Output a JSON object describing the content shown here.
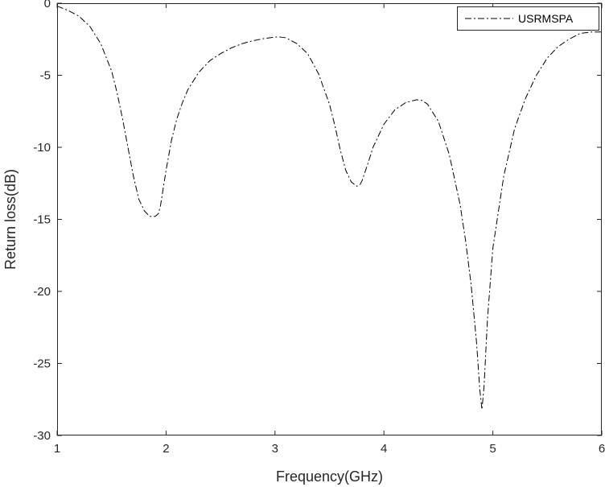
{
  "chart_data": {
    "type": "line",
    "title": "",
    "xlabel": "Frequency(GHz)",
    "ylabel": "Return loss(dB)",
    "xlim": [
      1,
      6
    ],
    "ylim": [
      -30,
      0
    ],
    "xticks": [
      1,
      2,
      3,
      4,
      5,
      6
    ],
    "yticks": [
      0,
      -5,
      -10,
      -15,
      -20,
      -25,
      -30
    ],
    "grid": false,
    "legend_position": "top-right",
    "series": [
      {
        "name": "USRMSPA",
        "line_style": "dash-dot",
        "color": "#000000",
        "x": [
          1.0,
          1.1,
          1.2,
          1.3,
          1.4,
          1.5,
          1.55,
          1.6,
          1.65,
          1.7,
          1.75,
          1.8,
          1.85,
          1.9,
          1.93,
          1.95,
          2.0,
          2.05,
          2.1,
          2.15,
          2.2,
          2.3,
          2.4,
          2.5,
          2.6,
          2.7,
          2.8,
          2.9,
          3.0,
          3.05,
          3.1,
          3.2,
          3.3,
          3.4,
          3.5,
          3.55,
          3.6,
          3.65,
          3.7,
          3.75,
          3.78,
          3.8,
          3.85,
          3.9,
          4.0,
          4.1,
          4.2,
          4.3,
          4.35,
          4.4,
          4.5,
          4.6,
          4.7,
          4.75,
          4.8,
          4.85,
          4.88,
          4.9,
          4.92,
          4.95,
          5.0,
          5.1,
          5.2,
          5.3,
          5.4,
          5.5,
          5.6,
          5.7,
          5.8,
          5.9,
          5.95,
          6.0
        ],
        "y": [
          -0.2,
          -0.5,
          -0.9,
          -1.6,
          -2.8,
          -4.7,
          -6.2,
          -8.0,
          -10.0,
          -12.0,
          -13.6,
          -14.4,
          -14.8,
          -14.8,
          -14.6,
          -14.0,
          -11.6,
          -9.5,
          -8.0,
          -6.9,
          -6.0,
          -4.8,
          -4.0,
          -3.5,
          -3.1,
          -2.8,
          -2.6,
          -2.45,
          -2.35,
          -2.35,
          -2.4,
          -2.8,
          -3.5,
          -4.9,
          -7.0,
          -8.5,
          -10.2,
          -11.6,
          -12.4,
          -12.7,
          -12.6,
          -12.3,
          -11.2,
          -10.0,
          -8.4,
          -7.4,
          -6.9,
          -6.7,
          -6.75,
          -7.0,
          -8.2,
          -10.5,
          -14.0,
          -16.5,
          -19.5,
          -23.5,
          -26.8,
          -28.2,
          -26.5,
          -22.0,
          -17.0,
          -12.0,
          -8.7,
          -6.6,
          -5.0,
          -3.8,
          -3.0,
          -2.5,
          -2.1,
          -2.0,
          -2.0,
          -2.0
        ]
      }
    ]
  }
}
